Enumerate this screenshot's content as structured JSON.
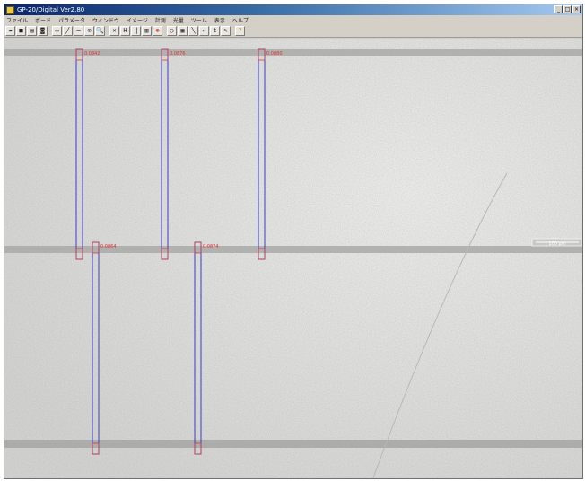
{
  "window": {
    "title": "GP-20/Digital Ver2.80"
  },
  "menu": {
    "items": [
      "ファイル",
      "ボード",
      "パラメータ",
      "ウィンドウ",
      "イメージ",
      "計測",
      "光量",
      "ツール",
      "表示",
      "ヘルプ"
    ]
  },
  "toolbar": {
    "buttons": [
      {
        "name": "open-icon",
        "glyph": "▰"
      },
      {
        "name": "save-icon",
        "glyph": "■"
      },
      {
        "name": "print-icon",
        "glyph": "▤"
      },
      {
        "name": "camera-icon",
        "glyph": "◙"
      },
      {
        "name": "rectangle-select-icon",
        "glyph": "▭"
      },
      {
        "name": "line-tool-icon",
        "glyph": "╱"
      },
      {
        "name": "horizontal-line-icon",
        "glyph": "─"
      },
      {
        "name": "zoom-icon",
        "glyph": "⊙"
      },
      {
        "name": "magnify-icon",
        "glyph": "🔍"
      },
      {
        "name": "cross-icon",
        "glyph": "✕"
      },
      {
        "name": "h-measure-icon",
        "glyph": "H"
      },
      {
        "name": "v-measure-icon",
        "glyph": "‖"
      },
      {
        "name": "bars-icon",
        "glyph": "▥"
      },
      {
        "name": "target-icon",
        "glyph": "⊕"
      },
      {
        "name": "circle-icon",
        "glyph": "○"
      },
      {
        "name": "grid-icon",
        "glyph": "▦"
      },
      {
        "name": "diagonal-icon",
        "glyph": "╲"
      },
      {
        "name": "width-icon",
        "glyph": "↔"
      },
      {
        "name": "text-icon",
        "glyph": "t"
      },
      {
        "name": "pen-icon",
        "glyph": "✎"
      },
      {
        "name": "help-icon",
        "glyph": "?"
      }
    ]
  },
  "scale_bar": {
    "label": "100 µm"
  },
  "measurements": [
    {
      "label": "0.0842"
    },
    {
      "label": "0.0876"
    },
    {
      "label": "0.0880"
    },
    {
      "label": "0.0864"
    },
    {
      "label": "0.0874"
    }
  ],
  "colors": {
    "box": "#3c3ccc",
    "box_mark": "#d23c50",
    "label": "#e03030",
    "track": "#a9aaa8"
  }
}
